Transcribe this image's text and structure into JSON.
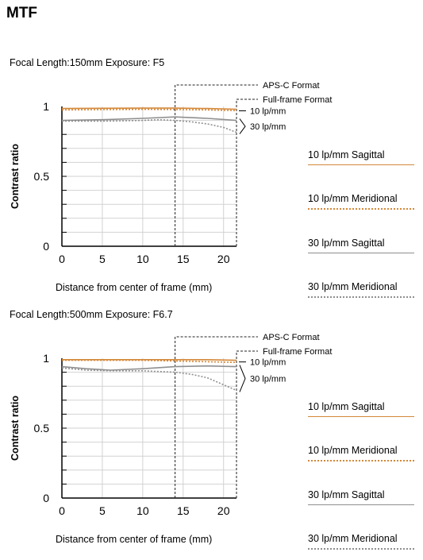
{
  "page": {
    "title": "MTF"
  },
  "chart_data": [
    {
      "type": "line",
      "subtitle": "Focal Length:150mm  Exposure: F5",
      "xlabel": "Distance from center of frame (mm)",
      "ylabel": "Contrast ratio",
      "xlim": [
        0,
        21.6
      ],
      "ylim": [
        0,
        1
      ],
      "xticks": [
        "0",
        "5",
        "10",
        "15",
        "20"
      ],
      "yticks": [
        "0",
        "0.5",
        "1"
      ],
      "grid": true,
      "annotations": {
        "apsc": {
          "text": "APS-C Format",
          "x": 14
        },
        "fullframe": {
          "text": "Full-frame Format",
          "x": 21.6
        },
        "lp10": "10 lp/mm",
        "lp30": "30 lp/mm"
      },
      "series": [
        {
          "name": "10 lp/mm Sagittal",
          "color": "#d4883a",
          "dash": "none",
          "x": [
            0,
            5,
            10,
            14,
            18,
            21.6
          ],
          "y": [
            0.985,
            0.987,
            0.988,
            0.988,
            0.985,
            0.98
          ]
        },
        {
          "name": "10 lp/mm Meridional",
          "color": "#d4883a",
          "dash": "dotted",
          "x": [
            0,
            5,
            10,
            14,
            18,
            21.6
          ],
          "y": [
            0.975,
            0.977,
            0.979,
            0.978,
            0.975,
            0.97
          ]
        },
        {
          "name": "30 lp/mm Sagittal",
          "color": "#8f8f8f",
          "dash": "none",
          "x": [
            0,
            5,
            10,
            14,
            18,
            21.6
          ],
          "y": [
            0.9,
            0.905,
            0.915,
            0.925,
            0.915,
            0.9
          ]
        },
        {
          "name": "30 lp/mm Meridional",
          "color": "#8f8f8f",
          "dash": "dotted",
          "x": [
            0,
            5,
            10,
            12,
            14,
            16,
            18,
            20,
            21.6
          ],
          "y": [
            0.895,
            0.895,
            0.9,
            0.905,
            0.9,
            0.89,
            0.875,
            0.85,
            0.815
          ]
        }
      ]
    },
    {
      "type": "line",
      "subtitle": "Focal Length:500mm  Exposure: F6.7",
      "xlabel": "Distance from center of frame (mm)",
      "ylabel": "Contrast ratio",
      "xlim": [
        0,
        21.6
      ],
      "ylim": [
        0,
        1
      ],
      "xticks": [
        "0",
        "5",
        "10",
        "15",
        "20"
      ],
      "yticks": [
        "0",
        "0.5",
        "1"
      ],
      "grid": true,
      "annotations": {
        "apsc": {
          "text": "APS-C Format",
          "x": 14
        },
        "fullframe": {
          "text": "Full-frame Format",
          "x": 21.6
        },
        "lp10": "10 lp/mm",
        "lp30": "30 lp/mm"
      },
      "series": [
        {
          "name": "10 lp/mm Sagittal",
          "color": "#d4883a",
          "dash": "none",
          "x": [
            0,
            5,
            10,
            14,
            18,
            21.6
          ],
          "y": [
            0.99,
            0.99,
            0.99,
            0.99,
            0.99,
            0.985
          ]
        },
        {
          "name": "10 lp/mm Meridional",
          "color": "#d4883a",
          "dash": "dotted",
          "x": [
            0,
            5,
            10,
            14,
            18,
            21.6
          ],
          "y": [
            0.985,
            0.985,
            0.985,
            0.98,
            0.975,
            0.97
          ]
        },
        {
          "name": "30 lp/mm Sagittal",
          "color": "#8f8f8f",
          "dash": "none",
          "x": [
            0,
            3,
            6,
            10,
            14,
            18,
            21.6
          ],
          "y": [
            0.94,
            0.925,
            0.915,
            0.925,
            0.94,
            0.945,
            0.94
          ]
        },
        {
          "name": "30 lp/mm Meridional",
          "color": "#8f8f8f",
          "dash": "dotted",
          "x": [
            0,
            3,
            6,
            10,
            14,
            16,
            18,
            20,
            21.6
          ],
          "y": [
            0.93,
            0.915,
            0.91,
            0.91,
            0.9,
            0.885,
            0.86,
            0.81,
            0.77
          ]
        }
      ]
    }
  ],
  "legend": {
    "items": [
      {
        "label": "10 lp/mm Sagittal",
        "color": "#d4883a",
        "style": "solid"
      },
      {
        "label": "10 lp/mm Meridional",
        "color": "#d4883a",
        "style": "dotted"
      },
      {
        "label": "30 lp/mm Sagittal",
        "color": "#8f8f8f",
        "style": "solid"
      },
      {
        "label": "30 lp/mm Meridional",
        "color": "#8f8f8f",
        "style": "dotted"
      }
    ]
  }
}
